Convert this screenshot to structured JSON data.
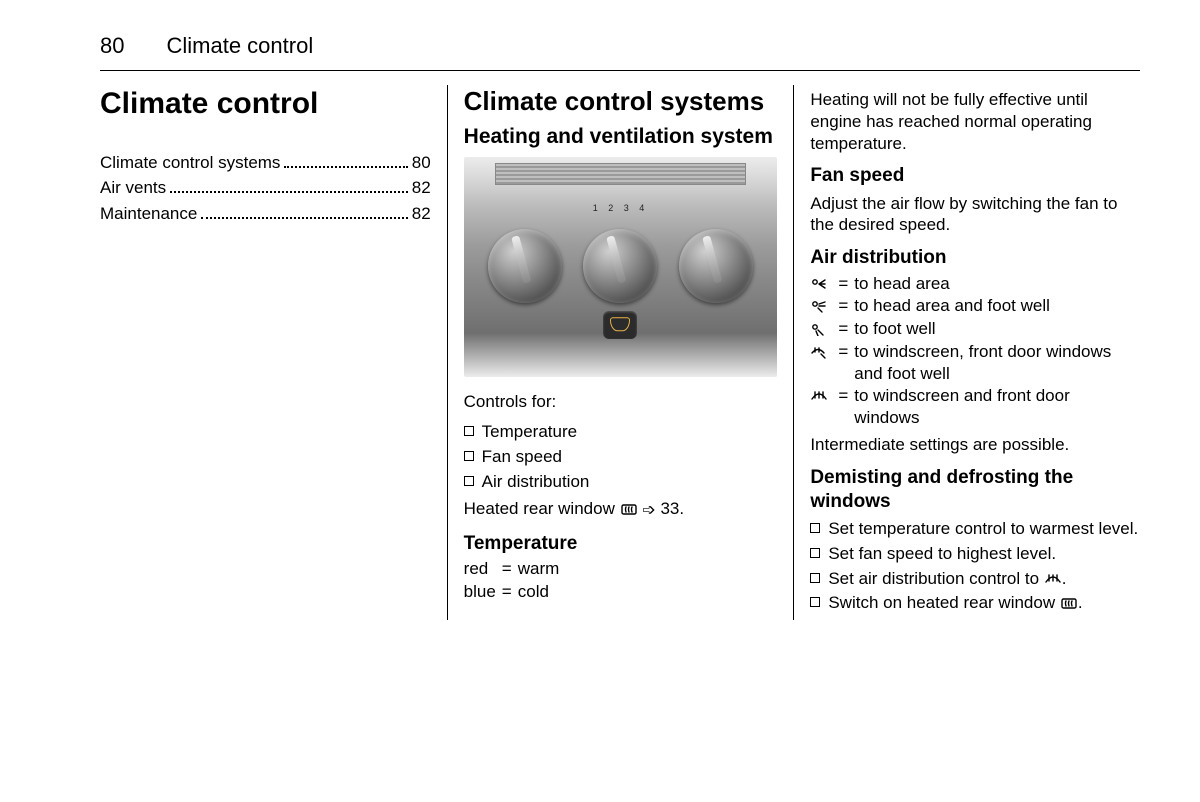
{
  "page": {
    "number": "80",
    "running_title": "Climate control"
  },
  "col1": {
    "title": "Climate control",
    "toc": [
      {
        "label": "Climate control systems",
        "page": "80"
      },
      {
        "label": "Air vents",
        "page": "82"
      },
      {
        "label": "Maintenance",
        "page": "82"
      }
    ]
  },
  "col2": {
    "title": "Climate control systems",
    "subtitle": "Heating and ventilation system",
    "panel": {
      "dial_count": 3,
      "fan_marks": "1 2 3 4",
      "defrost_button_color": "#e6b24a",
      "bg_gradient": [
        "#ececec",
        "#d8d8d8",
        "#bcbcbc",
        "#9c9c9c",
        "#8a8a8a",
        "#6f6f6f",
        "#ececec"
      ]
    },
    "controls_intro": "Controls for:",
    "controls": [
      "Temperature",
      "Fan speed",
      "Air distribution"
    ],
    "heated_rear_prefix": "Heated rear window ",
    "heated_rear_ref": " 33.",
    "temperature_title": "Temperature",
    "temperature_rows": [
      {
        "k": "red",
        "v": "warm"
      },
      {
        "k": "blue",
        "v": "cold"
      }
    ]
  },
  "col3": {
    "heating_note": "Heating will not be fully effective until engine has reached normal operating temperature.",
    "fan_title": "Fan speed",
    "fan_text": "Adjust the air flow by switching the fan to the desired speed.",
    "air_title": "Air distribution",
    "air_rows": [
      {
        "icon": "head",
        "text": "to head area"
      },
      {
        "icon": "head-foot",
        "text": "to head area and foot well"
      },
      {
        "icon": "foot",
        "text": "to foot well"
      },
      {
        "icon": "screen-foot",
        "text": "to windscreen, front door windows and foot well"
      },
      {
        "icon": "screen",
        "text": "to windscreen and front door windows"
      }
    ],
    "intermediate": "Intermediate settings are possible.",
    "demist_title": "Demisting and defrosting the windows",
    "demist_items": [
      {
        "text": "Set temperature control to warmest level."
      },
      {
        "text": "Set fan speed to highest level."
      },
      {
        "text_pre": "Set air distribution control to ",
        "icon": "screen",
        "text_post": "."
      },
      {
        "text_pre": "Switch on heated rear window ",
        "icon": "rear-defrost",
        "text_post": "."
      }
    ]
  },
  "icons": {
    "arrow_ref": "➩"
  }
}
